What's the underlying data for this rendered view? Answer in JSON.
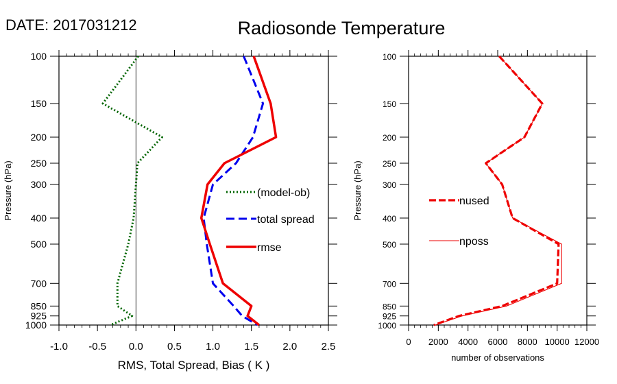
{
  "header": {
    "date_text": "DATE: 2017031212",
    "title": "Radiosonde Temperature"
  },
  "chart_data": [
    {
      "type": "line",
      "xlabel": "RMS, Total Spread, Bias ( K )",
      "ylabel": "Pressure (hPa)",
      "xlim": [
        -1.0,
        2.5
      ],
      "x_ticks": [
        "-1.0",
        "-0.5",
        "0.0",
        "0.5",
        "1.0",
        "1.5",
        "2.0",
        "2.5"
      ],
      "y_scale": "log",
      "ylim": [
        1000,
        100
      ],
      "y_ticks": [
        "100",
        "150",
        "200",
        "250",
        "300",
        "400",
        "500",
        "700",
        "850",
        "925",
        "1000"
      ],
      "pressure_levels": [
        100,
        150,
        200,
        250,
        300,
        400,
        500,
        700,
        850,
        925,
        1000
      ],
      "legend_position": "center-right",
      "series": [
        {
          "name": "(model-ob)",
          "color": "#006400",
          "style": "dotted",
          "values": [
            0.03,
            -0.43,
            0.34,
            0.02,
            0.0,
            -0.03,
            -0.1,
            -0.24,
            -0.24,
            -0.05,
            -0.33
          ]
        },
        {
          "name": "total spread",
          "color": "#0000ee",
          "style": "dashed",
          "values": [
            1.4,
            1.65,
            1.52,
            1.3,
            1.0,
            0.88,
            0.92,
            1.0,
            1.27,
            1.38,
            1.58
          ]
        },
        {
          "name": "rmse",
          "color": "#ee0000",
          "style": "solid",
          "values": [
            1.53,
            1.75,
            1.82,
            1.15,
            0.93,
            0.85,
            0.96,
            1.13,
            1.5,
            1.45,
            1.6
          ]
        }
      ]
    },
    {
      "type": "line",
      "xlabel": "number of observations",
      "ylabel": "Pressure (hPa)",
      "xlim": [
        0,
        12000
      ],
      "x_ticks": [
        "0",
        "2000",
        "4000",
        "6000",
        "8000",
        "10000",
        "12000"
      ],
      "y_scale": "log",
      "ylim": [
        1000,
        100
      ],
      "y_ticks": [
        "100",
        "150",
        "200",
        "250",
        "300",
        "400",
        "500",
        "700",
        "850",
        "925",
        "1000"
      ],
      "pressure_levels": [
        100,
        150,
        200,
        250,
        300,
        400,
        500,
        700,
        850,
        925,
        1000
      ],
      "legend_position": "center-left",
      "series": [
        {
          "name": "nused",
          "color": "#ee0000",
          "style": "dashed-thick",
          "values": [
            6100,
            9000,
            7800,
            5200,
            6300,
            7000,
            10100,
            10000,
            6300,
            3400,
            1700
          ]
        },
        {
          "name": "nposs",
          "color": "#ee0000",
          "style": "thin",
          "values": [
            6100,
            9000,
            7800,
            5200,
            6300,
            7000,
            10300,
            10300,
            6600,
            3600,
            1800
          ]
        }
      ]
    }
  ]
}
